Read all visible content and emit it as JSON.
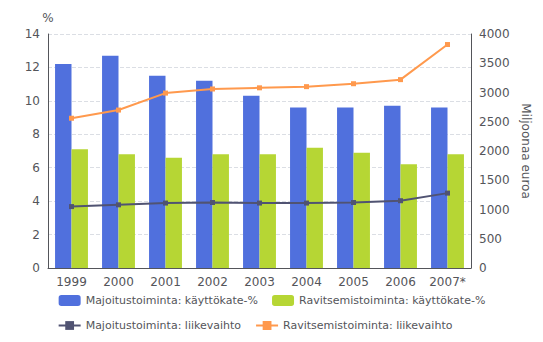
{
  "chart_data": {
    "type": "bar",
    "categories": [
      "1999",
      "2000",
      "2001",
      "2002",
      "2003",
      "2004",
      "2005",
      "2006",
      "2007*"
    ],
    "series": [
      {
        "name": "Majoitustoiminta: käyttökate-%",
        "type": "bar",
        "values": [
          12.2,
          12.7,
          11.5,
          11.2,
          10.3,
          9.6,
          9.6,
          9.7,
          9.6
        ]
      },
      {
        "name": "Ravitsemistoiminta: käyttökate-%",
        "type": "bar",
        "values": [
          7.1,
          6.8,
          6.6,
          6.8,
          6.8,
          7.2,
          6.9,
          6.2,
          6.8
        ]
      },
      {
        "name": "Majoitustoiminta: liikevaihto",
        "type": "line",
        "axis": "y2",
        "marker": "square",
        "values": [
          1050,
          1080,
          1110,
          1120,
          1110,
          1110,
          1120,
          1150,
          1280
        ]
      },
      {
        "name": "Ravitsemistoiminta: liikevaihto",
        "type": "line",
        "axis": "y2",
        "marker": "square",
        "values": [
          2560,
          2700,
          2990,
          3060,
          3080,
          3100,
          3150,
          3220,
          3820
        ]
      }
    ],
    "ylabel": "%",
    "y2label": "Miljoonaa euroa",
    "ylim": [
      0,
      14
    ],
    "yticks": [
      0,
      2,
      4,
      6,
      8,
      10,
      12,
      14
    ],
    "y2lim": [
      0,
      4000
    ],
    "y2ticks": [
      0,
      500,
      1000,
      1500,
      2000,
      2500,
      3000,
      3500,
      4000
    ],
    "grid": true,
    "legend": "bottom"
  }
}
